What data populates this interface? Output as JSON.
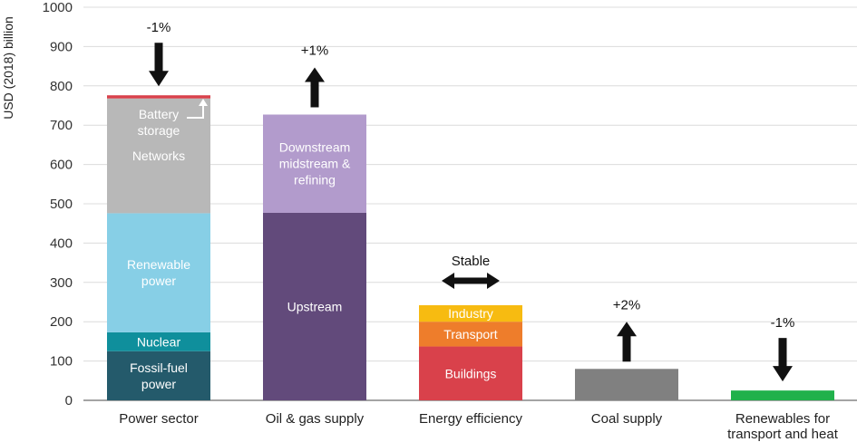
{
  "chart_data": {
    "type": "bar",
    "stacked": true,
    "ylabel": "USD (2018) billion",
    "ylim": [
      0,
      1000
    ],
    "yticks": [
      0,
      100,
      200,
      300,
      400,
      500,
      600,
      700,
      800,
      900,
      1000
    ],
    "grid": true,
    "categories": [
      {
        "label": "Power sector",
        "label_lines": [
          "Power sector"
        ],
        "change": {
          "label": "-1%",
          "direction": "down"
        },
        "segments": [
          {
            "name": "Fossil-fuel power",
            "lines": [
              "Fossil-fuel",
              "power"
            ],
            "value": 125,
            "color": "#245a6b"
          },
          {
            "name": "Nuclear",
            "lines": [
              "Nuclear"
            ],
            "value": 48,
            "color": "#0f8f9c"
          },
          {
            "name": "Renewable power",
            "lines": [
              "Renewable",
              "power"
            ],
            "value": 303,
            "color": "#87cfe6"
          },
          {
            "name": "Networks",
            "lines": [
              "Networks"
            ],
            "value": 292,
            "color": "#b8b8b8"
          },
          {
            "name": "Battery storage",
            "lines": [],
            "value": 8,
            "color": "#d9414b"
          }
        ],
        "callout": {
          "lines": [
            "Battery",
            "storage"
          ]
        }
      },
      {
        "label": "Oil & gas supply",
        "label_lines": [
          "Oil & gas supply"
        ],
        "change": {
          "label": "+1%",
          "direction": "up"
        },
        "segments": [
          {
            "name": "Upstream",
            "lines": [
              "Upstream"
            ],
            "value": 477,
            "color": "#624a7b"
          },
          {
            "name": "Downstream midstream & refining",
            "lines": [
              "Downstream",
              "midstream &",
              "refining"
            ],
            "value": 250,
            "color": "#b29bcc"
          }
        ]
      },
      {
        "label": "Energy efficiency",
        "label_lines": [
          "Energy efficiency"
        ],
        "change": {
          "label": "Stable",
          "direction": "both"
        },
        "segments": [
          {
            "name": "Buildings",
            "lines": [
              "Buildings"
            ],
            "value": 137,
            "color": "#d9414b"
          },
          {
            "name": "Transport",
            "lines": [
              "Transport"
            ],
            "value": 63,
            "color": "#ee7d2b"
          },
          {
            "name": "Industry",
            "lines": [
              "Industry"
            ],
            "value": 42,
            "color": "#f7bb11"
          }
        ]
      },
      {
        "label": "Coal supply",
        "label_lines": [
          "Coal supply"
        ],
        "change": {
          "label": "+2%",
          "direction": "up"
        },
        "segments": [
          {
            "name": "Coal supply",
            "lines": [],
            "value": 80,
            "color": "#808080"
          }
        ]
      },
      {
        "label": "Renewables for transport and heat",
        "label_lines": [
          "Renewables for",
          "transport and heat"
        ],
        "change": {
          "label": "-1%",
          "direction": "down"
        },
        "segments": [
          {
            "name": "Renewables for transport and heat",
            "lines": [],
            "value": 25,
            "color": "#21b14b"
          }
        ]
      }
    ]
  }
}
